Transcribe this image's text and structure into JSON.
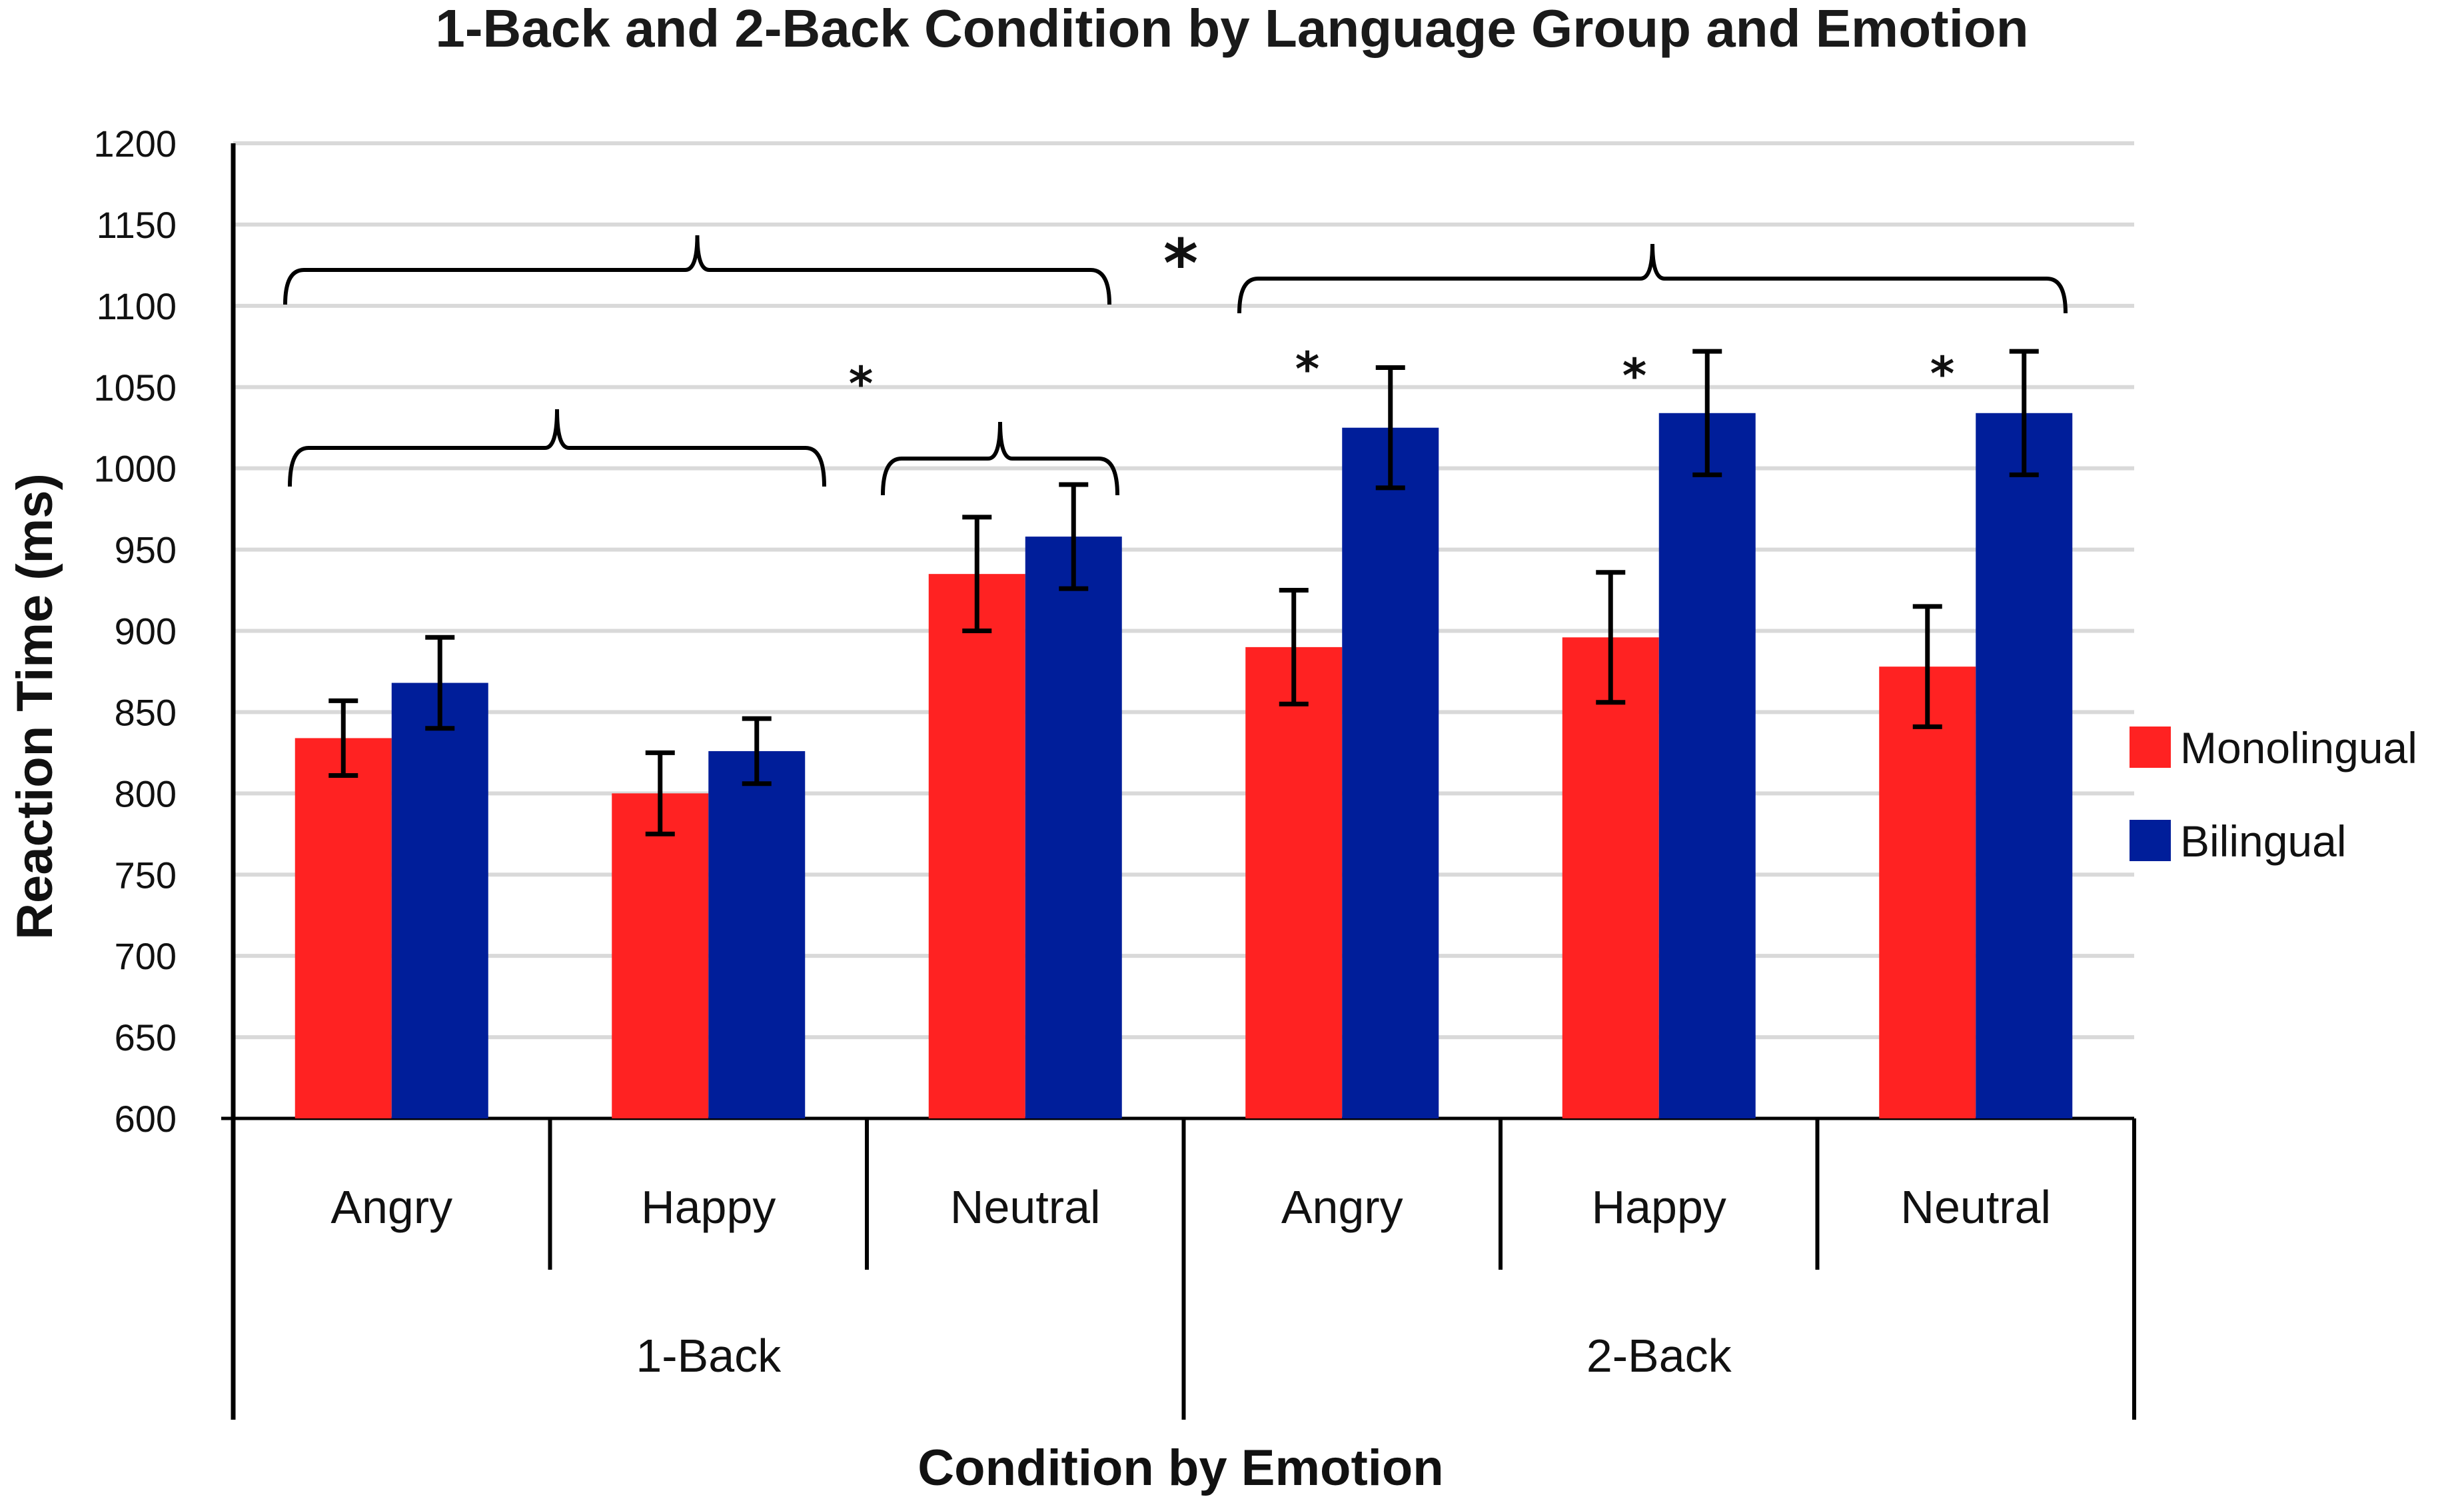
{
  "chart_data": {
    "type": "bar",
    "title": "1-Back and 2-Back Condition by Language Group and Emotion",
    "xlabel": "Condition by Emotion",
    "ylabel": "Reaction Time (ms)",
    "ylim": [
      600,
      1200
    ],
    "ytick_step": 50,
    "yticks": [
      "600",
      "650",
      "700",
      "750",
      "800",
      "850",
      "900",
      "950",
      "1000",
      "1050",
      "1100",
      "1150",
      "1200"
    ],
    "grid": true,
    "legend_position": "right",
    "groups": [
      "1-Back",
      "2-Back"
    ],
    "categories": [
      "Angry",
      "Happy",
      "Neutral",
      "Angry",
      "Happy",
      "Neutral"
    ],
    "series": [
      {
        "name": "Monolingual",
        "color": "#ff2222",
        "values": [
          834,
          800,
          935,
          890,
          896,
          878
        ],
        "errors": [
          23,
          25,
          35,
          35,
          40,
          37
        ]
      },
      {
        "name": "Bilingual",
        "color": "#001e9a",
        "values": [
          868,
          826,
          958,
          1025,
          1034,
          1034
        ],
        "errors": [
          28,
          20,
          32,
          37,
          38,
          38
        ]
      }
    ],
    "annotations": [
      {
        "text": "*",
        "label": "1-Back vs 2-Back overall"
      },
      {
        "text": "*",
        "label": "Angry/Happy vs Neutral (1-Back)"
      },
      {
        "text": "*",
        "label": "2-Back Angry"
      },
      {
        "text": "*",
        "label": "2-Back Happy"
      },
      {
        "text": "*",
        "label": "2-Back Neutral"
      }
    ]
  }
}
